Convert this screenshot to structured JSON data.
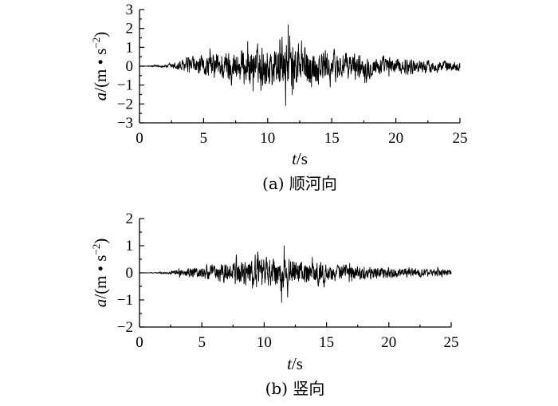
{
  "chart_data": [
    {
      "type": "line",
      "caption": "(a) 顺河向",
      "xlabel": "t/s",
      "ylabel": "a/(m·s^-2)",
      "xlim": [
        0,
        25
      ],
      "ylim": [
        -3,
        3
      ],
      "xticks": [
        0,
        5,
        10,
        15,
        20,
        25
      ],
      "yticks": [
        -3,
        -2,
        -1,
        0,
        1,
        2,
        3
      ],
      "xtick_labels": [
        "0",
        "5",
        "10",
        "15",
        "20",
        "25"
      ],
      "ytick_labels": [
        "−3",
        "−2",
        "−1",
        "0",
        "1",
        "2",
        "3"
      ],
      "grid": false,
      "series": [
        {
          "samples": 1250,
          "dt": 0.02,
          "envelope": {
            "t": [
              0,
              1,
              2,
              2.5,
              3,
              4,
              5,
              6,
              7,
              8,
              9,
              10,
              11,
              12,
              13,
              14,
              15,
              16,
              17,
              18,
              19,
              20,
              21,
              22,
              23,
              24,
              25
            ],
            "amp": [
              0.02,
              0.05,
              0.1,
              0.2,
              0.4,
              0.6,
              0.8,
              1.0,
              1.2,
              1.35,
              1.5,
              1.6,
              1.7,
              1.6,
              1.5,
              1.35,
              1.2,
              1.05,
              0.95,
              0.85,
              0.75,
              0.65,
              0.55,
              0.5,
              0.45,
              0.4,
              0.35
            ]
          },
          "peak_max": 2.2,
          "peak_min": -2.1
        }
      ]
    },
    {
      "type": "line",
      "caption": "(b) 竖向",
      "xlabel": "t/s",
      "ylabel": "a/(m·s^-2)",
      "xlim": [
        0,
        25
      ],
      "ylim": [
        -2,
        2
      ],
      "xticks": [
        0,
        5,
        10,
        15,
        20,
        25
      ],
      "yticks": [
        -2,
        -1,
        0,
        1,
        2
      ],
      "xtick_labels": [
        "0",
        "5",
        "10",
        "15",
        "20",
        "25"
      ],
      "ytick_labels": [
        "−2",
        "−1",
        "0",
        "1",
        "2"
      ],
      "grid": false,
      "series": [
        {
          "samples": 1250,
          "dt": 0.02,
          "envelope": {
            "t": [
              0,
              1,
              2,
              2.5,
              3,
              4,
              5,
              6,
              7,
              8,
              9,
              10,
              11,
              12,
              13,
              14,
              15,
              16,
              17,
              18,
              19,
              20,
              21,
              22,
              23,
              24,
              25
            ],
            "amp": [
              0.01,
              0.02,
              0.04,
              0.08,
              0.15,
              0.25,
              0.35,
              0.45,
              0.55,
              0.65,
              0.72,
              0.78,
              0.8,
              0.75,
              0.68,
              0.6,
              0.52,
              0.45,
              0.4,
              0.36,
              0.32,
              0.28,
              0.25,
              0.23,
              0.21,
              0.2,
              0.18
            ]
          },
          "peak_max": 1.0,
          "peak_min": -1.1
        }
      ]
    }
  ]
}
